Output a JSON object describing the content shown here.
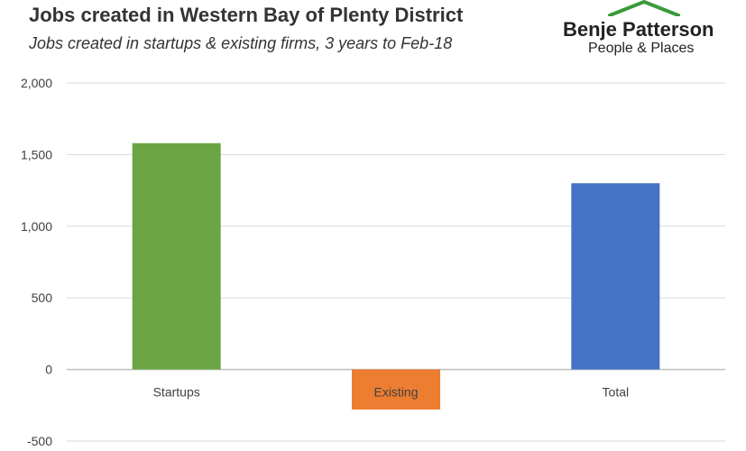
{
  "header": {
    "title": "Jobs created in Western Bay of Plenty District",
    "subtitle": "Jobs created in startups & existing firms, 3 years to Feb-18"
  },
  "logo": {
    "name": "Benje Patterson",
    "tagline": "People & Places",
    "roof_color": "#3a9a3a"
  },
  "chart_data": {
    "type": "bar",
    "categories": [
      "Startups",
      "Existing",
      "Total"
    ],
    "values": [
      1580,
      -280,
      1300
    ],
    "colors": [
      "#6aa443",
      "#ed7d31",
      "#4472c4"
    ],
    "title": "Jobs created in Western Bay of Plenty District",
    "subtitle": "Jobs created in startups & existing firms, 3 years to Feb-18",
    "xlabel": "",
    "ylabel": "",
    "ylim": [
      -500,
      2000
    ],
    "yticks": [
      -500,
      0,
      500,
      1000,
      1500,
      2000
    ],
    "ytick_labels": [
      "-500",
      "0",
      "500",
      "1,000",
      "1,500",
      "2,000"
    ],
    "grid": true,
    "legend": "none"
  }
}
